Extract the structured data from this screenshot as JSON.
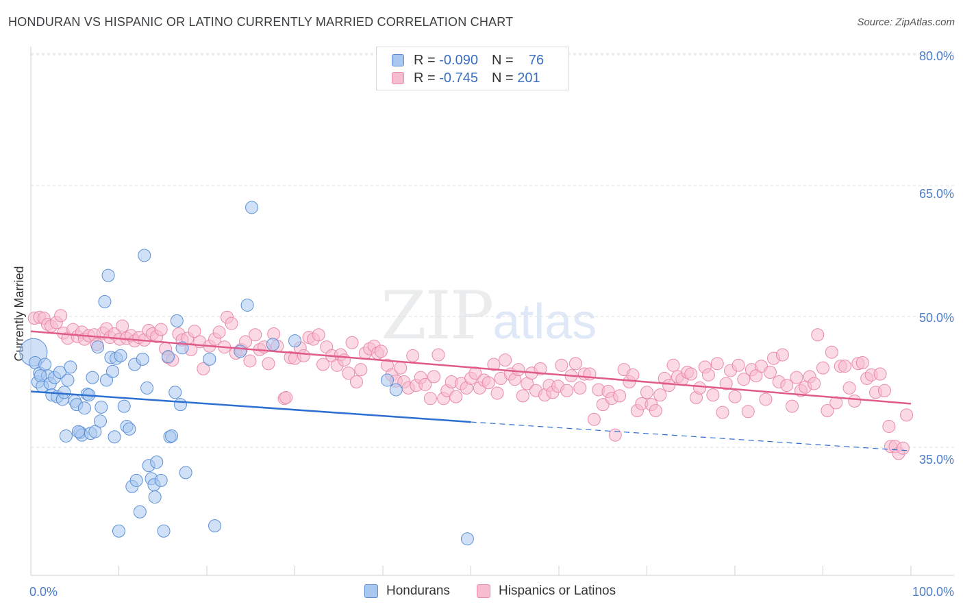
{
  "header": {
    "title": "HONDURAN VS HISPANIC OR LATINO CURRENTLY MARRIED CORRELATION CHART",
    "source": "Source: ZipAtlas.com"
  },
  "watermark": {
    "zip": "ZIP",
    "atlas": "atlas"
  },
  "legend": {
    "rows": [
      {
        "r_label": "R =",
        "r_value": "-0.090",
        "n_label": "N =",
        "n_value": "76"
      },
      {
        "r_label": "R =",
        "r_value": "-0.745",
        "n_label": "N =",
        "n_value": "201"
      }
    ]
  },
  "bottom_legend": {
    "series1": "Hondurans",
    "series2": "Hispanics or Latinos"
  },
  "colors": {
    "blue_fill": "#a9c8f0",
    "blue_stroke": "#5b8fd6",
    "blue_line": "#2c6fd1",
    "pink_fill": "#f7bcd0",
    "pink_stroke": "#e98aa9",
    "pink_line": "#e05a8a",
    "tick_text": "#4a7cc7"
  },
  "chart_data": {
    "type": "scatter",
    "title": "HONDURAN VS HISPANIC OR LATINO CURRENTLY MARRIED CORRELATION CHART",
    "xlabel": "",
    "ylabel": "Currently Married",
    "xlim": [
      0,
      100
    ],
    "ylim": [
      21,
      82
    ],
    "x_tick_labels": [
      "0.0%",
      "100.0%"
    ],
    "y_ticks": [
      35,
      50,
      65,
      80
    ],
    "y_tick_labels": [
      "35.0%",
      "50.0%",
      "65.0%",
      "80.0%"
    ],
    "grid": true,
    "legend_position": "top-center",
    "series": [
      {
        "name": "Hondurans",
        "r": -0.09,
        "n": 76,
        "trend": {
          "x0": 0,
          "y0": 41.4,
          "x1": 50,
          "y1": 37.9,
          "x_dash_end": 100,
          "y_dash_end": 34.6
        },
        "points": [
          [
            0.3,
            45.9
          ],
          [
            0.5,
            44.7
          ],
          [
            0.8,
            42.5
          ],
          [
            1.0,
            43.5
          ],
          [
            1.3,
            42.0
          ],
          [
            1.6,
            44.5
          ],
          [
            1.9,
            43.2
          ],
          [
            2.2,
            42.3
          ],
          [
            2.4,
            41.0
          ],
          [
            2.7,
            43.0
          ],
          [
            3.0,
            40.8
          ],
          [
            3.3,
            43.6
          ],
          [
            3.6,
            40.5
          ],
          [
            4.0,
            36.3
          ],
          [
            4.2,
            42.7
          ],
          [
            4.5,
            44.2
          ],
          [
            5.0,
            40.3
          ],
          [
            5.2,
            39.9
          ],
          [
            5.6,
            36.7
          ],
          [
            5.8,
            36.4
          ],
          [
            6.1,
            39.5
          ],
          [
            6.4,
            41.1
          ],
          [
            6.8,
            36.6
          ],
          [
            7.0,
            43.0
          ],
          [
            7.3,
            36.8
          ],
          [
            7.6,
            46.5
          ],
          [
            7.9,
            38.0
          ],
          [
            8.0,
            39.6
          ],
          [
            8.4,
            51.7
          ],
          [
            8.6,
            42.7
          ],
          [
            8.8,
            54.7
          ],
          [
            9.1,
            45.3
          ],
          [
            9.5,
            36.2
          ],
          [
            9.7,
            45.2
          ],
          [
            10.0,
            25.4
          ],
          [
            10.2,
            45.5
          ],
          [
            10.6,
            39.7
          ],
          [
            10.9,
            37.4
          ],
          [
            11.2,
            37.1
          ],
          [
            11.5,
            30.5
          ],
          [
            11.8,
            44.5
          ],
          [
            12.0,
            31.2
          ],
          [
            12.4,
            27.6
          ],
          [
            12.7,
            45.1
          ],
          [
            12.9,
            57.0
          ],
          [
            13.2,
            41.8
          ],
          [
            13.4,
            32.9
          ],
          [
            13.7,
            31.4
          ],
          [
            14.0,
            30.7
          ],
          [
            14.1,
            29.3
          ],
          [
            14.3,
            33.3
          ],
          [
            14.8,
            31.2
          ],
          [
            15.1,
            25.4
          ],
          [
            15.6,
            45.4
          ],
          [
            15.8,
            36.2
          ],
          [
            16.0,
            36.3
          ],
          [
            16.4,
            41.3
          ],
          [
            16.6,
            49.5
          ],
          [
            17.0,
            39.9
          ],
          [
            17.2,
            46.4
          ],
          [
            17.6,
            32.1
          ],
          [
            20.3,
            45.1
          ],
          [
            20.9,
            26.0
          ],
          [
            23.8,
            46.0
          ],
          [
            24.6,
            51.3
          ],
          [
            25.1,
            62.5
          ],
          [
            27.5,
            46.8
          ],
          [
            30.0,
            47.2
          ],
          [
            40.5,
            42.7
          ],
          [
            41.5,
            41.6
          ],
          [
            49.6,
            24.5
          ],
          [
            1.1,
            43.2
          ],
          [
            3.8,
            41.3
          ],
          [
            6.6,
            41.0
          ],
          [
            9.3,
            43.7
          ],
          [
            5.4,
            36.8
          ]
        ]
      },
      {
        "name": "Hispanics or Latinos",
        "r": -0.745,
        "n": 201,
        "trend": {
          "x0": 0,
          "y0": 48.3,
          "x1": 100,
          "y1": 40.0
        },
        "points": [
          [
            0.4,
            49.8
          ],
          [
            1.0,
            49.9
          ],
          [
            1.5,
            49.8
          ],
          [
            1.9,
            49.1
          ],
          [
            2.3,
            48.9
          ],
          [
            2.9,
            49.3
          ],
          [
            3.4,
            50.1
          ],
          [
            3.7,
            48.1
          ],
          [
            4.2,
            47.5
          ],
          [
            4.8,
            48.5
          ],
          [
            5.3,
            47.7
          ],
          [
            5.8,
            48.2
          ],
          [
            6.1,
            47.4
          ],
          [
            6.6,
            47.8
          ],
          [
            7.2,
            47.9
          ],
          [
            7.5,
            46.8
          ],
          [
            8.2,
            48.1
          ],
          [
            8.6,
            48.6
          ],
          [
            9.0,
            47.6
          ],
          [
            9.5,
            48.0
          ],
          [
            10.1,
            47.4
          ],
          [
            10.4,
            48.9
          ],
          [
            10.9,
            47.5
          ],
          [
            11.4,
            47.8
          ],
          [
            11.8,
            47.2
          ],
          [
            12.3,
            47.6
          ],
          [
            12.9,
            47.3
          ],
          [
            13.4,
            48.4
          ],
          [
            13.8,
            48.0
          ],
          [
            14.3,
            47.7
          ],
          [
            14.8,
            48.5
          ],
          [
            15.3,
            46.3
          ],
          [
            15.6,
            45.3
          ],
          [
            16.1,
            45.0
          ],
          [
            16.8,
            48.0
          ],
          [
            17.2,
            47.3
          ],
          [
            17.8,
            47.5
          ],
          [
            18.2,
            46.2
          ],
          [
            18.6,
            48.3
          ],
          [
            19.2,
            47.1
          ],
          [
            19.6,
            44.0
          ],
          [
            20.3,
            46.6
          ],
          [
            20.9,
            47.4
          ],
          [
            21.4,
            48.2
          ],
          [
            22.0,
            46.5
          ],
          [
            22.3,
            49.9
          ],
          [
            22.8,
            49.2
          ],
          [
            23.3,
            45.8
          ],
          [
            23.9,
            46.2
          ],
          [
            24.4,
            47.1
          ],
          [
            24.9,
            44.9
          ],
          [
            25.5,
            47.9
          ],
          [
            26.0,
            46.2
          ],
          [
            26.5,
            46.5
          ],
          [
            27.0,
            44.6
          ],
          [
            27.6,
            48.0
          ],
          [
            28.0,
            46.6
          ],
          [
            28.8,
            40.6
          ],
          [
            29.0,
            40.7
          ],
          [
            29.5,
            45.3
          ],
          [
            30.0,
            45.2
          ],
          [
            30.6,
            46.4
          ],
          [
            31.0,
            45.5
          ],
          [
            31.6,
            47.6
          ],
          [
            32.1,
            47.4
          ],
          [
            32.7,
            47.9
          ],
          [
            33.2,
            44.5
          ],
          [
            33.6,
            46.5
          ],
          [
            34.2,
            45.5
          ],
          [
            34.8,
            44.4
          ],
          [
            35.2,
            45.6
          ],
          [
            35.6,
            45.0
          ],
          [
            36.1,
            43.5
          ],
          [
            36.5,
            47.0
          ],
          [
            37.0,
            42.5
          ],
          [
            37.5,
            43.9
          ],
          [
            38.0,
            45.8
          ],
          [
            38.5,
            46.3
          ],
          [
            39.0,
            46.6
          ],
          [
            39.4,
            45.8
          ],
          [
            39.8,
            46.0
          ],
          [
            40.5,
            44.4
          ],
          [
            41.0,
            43.3
          ],
          [
            41.5,
            42.6
          ],
          [
            42.0,
            44.1
          ],
          [
            42.4,
            42.5
          ],
          [
            42.9,
            41.8
          ],
          [
            43.4,
            45.5
          ],
          [
            43.8,
            42.1
          ],
          [
            44.3,
            43.0
          ],
          [
            44.8,
            42.2
          ],
          [
            45.4,
            40.6
          ],
          [
            45.8,
            43.1
          ],
          [
            46.3,
            45.6
          ],
          [
            46.9,
            40.6
          ],
          [
            47.3,
            41.5
          ],
          [
            47.8,
            42.5
          ],
          [
            48.3,
            40.8
          ],
          [
            48.9,
            42.3
          ],
          [
            49.5,
            41.8
          ],
          [
            50.0,
            42.9
          ],
          [
            50.5,
            43.5
          ],
          [
            51.0,
            41.8
          ],
          [
            51.5,
            42.7
          ],
          [
            52.0,
            42.4
          ],
          [
            52.6,
            44.5
          ],
          [
            53.0,
            41.2
          ],
          [
            53.4,
            42.9
          ],
          [
            53.9,
            45.0
          ],
          [
            54.5,
            43.4
          ],
          [
            55.0,
            42.8
          ],
          [
            55.4,
            43.9
          ],
          [
            55.9,
            40.9
          ],
          [
            56.4,
            42.3
          ],
          [
            56.9,
            43.5
          ],
          [
            57.4,
            41.5
          ],
          [
            57.9,
            44.0
          ],
          [
            58.4,
            41.0
          ],
          [
            58.9,
            42.1
          ],
          [
            59.3,
            41.3
          ],
          [
            59.9,
            42.0
          ],
          [
            60.3,
            44.4
          ],
          [
            60.9,
            41.5
          ],
          [
            61.4,
            43.2
          ],
          [
            61.9,
            44.6
          ],
          [
            62.4,
            41.8
          ],
          [
            62.9,
            43.4
          ],
          [
            63.5,
            43.4
          ],
          [
            64.0,
            38.2
          ],
          [
            64.5,
            41.6
          ],
          [
            65.0,
            39.9
          ],
          [
            65.6,
            41.4
          ],
          [
            66.0,
            40.6
          ],
          [
            66.4,
            36.4
          ],
          [
            66.9,
            40.9
          ],
          [
            67.4,
            43.9
          ],
          [
            68.0,
            42.5
          ],
          [
            68.4,
            43.3
          ],
          [
            68.9,
            39.2
          ],
          [
            69.4,
            40.0
          ],
          [
            70.0,
            41.3
          ],
          [
            70.5,
            39.9
          ],
          [
            71.0,
            39.2
          ],
          [
            71.5,
            41.0
          ],
          [
            72.0,
            42.9
          ],
          [
            72.5,
            42.1
          ],
          [
            73.0,
            44.4
          ],
          [
            73.5,
            43.1
          ],
          [
            74.0,
            42.8
          ],
          [
            74.6,
            43.6
          ],
          [
            75.0,
            43.4
          ],
          [
            75.6,
            40.7
          ],
          [
            76.0,
            41.8
          ],
          [
            76.6,
            44.2
          ],
          [
            77.0,
            43.3
          ],
          [
            77.5,
            41.0
          ],
          [
            78.0,
            44.6
          ],
          [
            78.6,
            39.0
          ],
          [
            79.0,
            42.3
          ],
          [
            79.5,
            43.8
          ],
          [
            80.0,
            40.8
          ],
          [
            80.4,
            44.4
          ],
          [
            81.0,
            42.8
          ],
          [
            81.5,
            39.1
          ],
          [
            81.9,
            43.9
          ],
          [
            82.4,
            43.2
          ],
          [
            83.0,
            44.3
          ],
          [
            83.5,
            40.5
          ],
          [
            84.0,
            43.6
          ],
          [
            84.4,
            45.2
          ],
          [
            85.0,
            42.5
          ],
          [
            85.4,
            45.6
          ],
          [
            85.9,
            42.1
          ],
          [
            86.5,
            39.7
          ],
          [
            87.0,
            43.0
          ],
          [
            87.5,
            41.5
          ],
          [
            88.0,
            41.9
          ],
          [
            88.5,
            43.1
          ],
          [
            89.0,
            42.3
          ],
          [
            89.4,
            47.9
          ],
          [
            90.0,
            44.1
          ],
          [
            90.5,
            39.2
          ],
          [
            91.0,
            45.9
          ],
          [
            91.5,
            40.1
          ],
          [
            92.0,
            44.3
          ],
          [
            92.5,
            44.3
          ],
          [
            93.0,
            41.8
          ],
          [
            93.6,
            40.3
          ],
          [
            94.0,
            44.6
          ],
          [
            94.5,
            44.7
          ],
          [
            95.0,
            42.9
          ],
          [
            95.5,
            43.3
          ],
          [
            96.0,
            41.3
          ],
          [
            96.5,
            43.4
          ],
          [
            97.0,
            41.5
          ],
          [
            97.5,
            37.4
          ],
          [
            97.7,
            35.1
          ],
          [
            98.2,
            35.1
          ],
          [
            98.6,
            34.3
          ],
          [
            99.1,
            34.9
          ],
          [
            99.5,
            38.7
          ]
        ]
      }
    ]
  }
}
